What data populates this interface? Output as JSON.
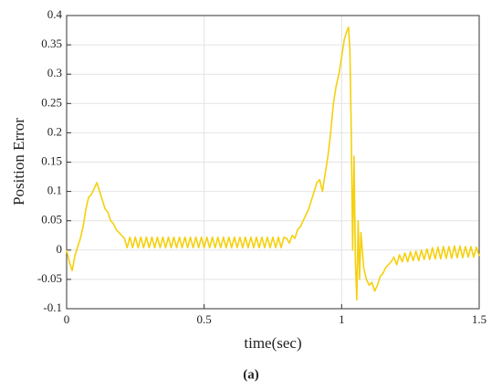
{
  "chart_data": {
    "type": "line",
    "xlabel": "time(sec)",
    "ylabel": "Position Error",
    "caption": "(a)",
    "color": "#f5d00c",
    "xlim": [
      0,
      1.5
    ],
    "xticks": [
      0,
      0.5,
      1,
      1.5
    ],
    "ylim": [
      -0.1,
      0.4
    ],
    "yticks": [
      -0.1,
      -0.05,
      0,
      0.05,
      0.1,
      0.15,
      0.2,
      0.25,
      0.3,
      0.35,
      0.4
    ],
    "grid": true,
    "x": [
      0,
      0.01,
      0.02,
      0.03,
      0.04,
      0.05,
      0.06,
      0.07,
      0.08,
      0.09,
      0.1,
      0.11,
      0.12,
      0.13,
      0.14,
      0.15,
      0.16,
      0.17,
      0.18,
      0.19,
      0.2,
      0.21,
      0.22,
      0.23,
      0.24,
      0.25,
      0.26,
      0.27,
      0.28,
      0.29,
      0.3,
      0.31,
      0.32,
      0.33,
      0.34,
      0.35,
      0.36,
      0.37,
      0.38,
      0.39,
      0.4,
      0.41,
      0.42,
      0.43,
      0.44,
      0.45,
      0.46,
      0.47,
      0.48,
      0.49,
      0.5,
      0.51,
      0.52,
      0.53,
      0.54,
      0.55,
      0.56,
      0.57,
      0.58,
      0.59,
      0.6,
      0.61,
      0.62,
      0.63,
      0.64,
      0.65,
      0.66,
      0.67,
      0.68,
      0.69,
      0.7,
      0.71,
      0.72,
      0.73,
      0.74,
      0.75,
      0.76,
      0.77,
      0.78,
      0.79,
      0.8,
      0.81,
      0.82,
      0.83,
      0.84,
      0.85,
      0.86,
      0.87,
      0.88,
      0.89,
      0.9,
      0.91,
      0.92,
      0.93,
      0.94,
      0.95,
      0.96,
      0.97,
      0.98,
      0.99,
      1,
      1.01,
      1.02,
      1.025,
      1.03,
      1.035,
      1.04,
      1.045,
      1.05,
      1.055,
      1.06,
      1.065,
      1.07,
      1.08,
      1.09,
      1.1,
      1.11,
      1.12,
      1.13,
      1.14,
      1.15,
      1.16,
      1.17,
      1.18,
      1.19,
      1.2,
      1.21,
      1.22,
      1.23,
      1.24,
      1.25,
      1.26,
      1.27,
      1.28,
      1.29,
      1.3,
      1.31,
      1.32,
      1.33,
      1.34,
      1.35,
      1.36,
      1.37,
      1.38,
      1.39,
      1.4,
      1.41,
      1.42,
      1.43,
      1.44,
      1.45,
      1.46,
      1.47,
      1.48,
      1.49,
      1.5
    ],
    "values": [
      0,
      -0.02,
      -0.035,
      -0.01,
      0.005,
      0.02,
      0.04,
      0.07,
      0.09,
      0.095,
      0.105,
      0.115,
      0.1,
      0.085,
      0.07,
      0.065,
      0.05,
      0.045,
      0.035,
      0.03,
      0.025,
      0.02,
      0.004,
      0.022,
      0.004,
      0.022,
      0.004,
      0.022,
      0.004,
      0.022,
      0.004,
      0.022,
      0.004,
      0.022,
      0.004,
      0.022,
      0.004,
      0.022,
      0.004,
      0.022,
      0.004,
      0.022,
      0.004,
      0.022,
      0.004,
      0.022,
      0.004,
      0.022,
      0.004,
      0.022,
      0.004,
      0.022,
      0.004,
      0.022,
      0.004,
      0.022,
      0.004,
      0.022,
      0.004,
      0.022,
      0.004,
      0.022,
      0.004,
      0.022,
      0.004,
      0.022,
      0.004,
      0.022,
      0.004,
      0.022,
      0.004,
      0.022,
      0.004,
      0.022,
      0.004,
      0.022,
      0.004,
      0.022,
      0.004,
      0.022,
      0.02,
      0.012,
      0.025,
      0.02,
      0.035,
      0.04,
      0.05,
      0.06,
      0.07,
      0.085,
      0.1,
      0.115,
      0.12,
      0.1,
      0.13,
      0.16,
      0.2,
      0.25,
      0.28,
      0.3,
      0.33,
      0.36,
      0.375,
      0.38,
      0.34,
      0.2,
      0,
      0.16,
      -0.02,
      -0.085,
      0.05,
      -0.05,
      0.03,
      -0.03,
      -0.05,
      -0.06,
      -0.055,
      -0.07,
      -0.06,
      -0.045,
      -0.04,
      -0.03,
      -0.025,
      -0.02,
      -0.012,
      -0.025,
      -0.008,
      -0.02,
      -0.005,
      -0.02,
      -0.003,
      -0.018,
      -0.002,
      -0.018,
      0,
      -0.016,
      0.002,
      -0.016,
      0.004,
      -0.015,
      0.005,
      -0.015,
      0.006,
      -0.014,
      0.006,
      -0.014,
      0.007,
      -0.013,
      0.007,
      -0.013,
      0.006,
      -0.012,
      0.006,
      -0.012,
      0.005,
      -0.01
    ]
  }
}
